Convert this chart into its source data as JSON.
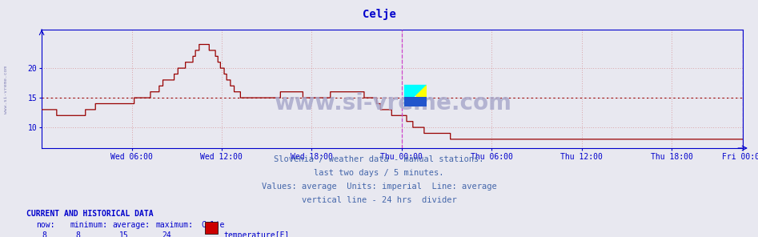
{
  "title": "Celje",
  "title_color": "#0000cc",
  "title_fontsize": 10,
  "bg_color": "#e8e8f0",
  "plot_bg_color": "#e8e8f0",
  "line_color": "#990000",
  "avg_line_color": "#990000",
  "vline_color": "#cc44cc",
  "xaxis_color": "#0000cc",
  "yaxis_color": "#0000cc",
  "grid_color": "#cc6666",
  "ylim": [
    6.5,
    26.5
  ],
  "yticks": [
    10,
    15,
    20
  ],
  "xtick_labels": [
    "Wed 06:00",
    "Wed 12:00",
    "Wed 18:00",
    "Thu 00:00",
    "Thu 06:00",
    "Thu 12:00",
    "Thu 18:00",
    "Fri 00:00"
  ],
  "avg_value": 15,
  "subtitle_lines": [
    "Slovenia / weather data - manual stations.",
    "last two days / 5 minutes.",
    "Values: average  Units: imperial  Line: average",
    "vertical line - 24 hrs  divider"
  ],
  "subtitle_color": "#4466aa",
  "subtitle_fontsize": 7.5,
  "footer_title": "CURRENT AND HISTORICAL DATA",
  "footer_color": "#0000cc",
  "footer_labels": [
    "now:",
    "minimum:",
    "average:",
    "maximum:",
    "Celje"
  ],
  "footer_values": [
    "8",
    "8",
    "15",
    "24"
  ],
  "legend_label": "temperature[F]",
  "legend_color": "#cc0000",
  "watermark": "www.si-vreme.com",
  "watermark_color": "#aaaacc",
  "watermark_fontsize": 20,
  "left_watermark": "www.si-vreme.com",
  "temp_data": [
    13,
    13,
    13,
    13,
    13,
    13,
    13,
    13,
    13,
    13,
    13,
    13,
    12,
    12,
    12,
    12,
    12,
    12,
    12,
    12,
    12,
    12,
    12,
    12,
    12,
    12,
    12,
    12,
    12,
    12,
    12,
    12,
    12,
    12,
    12,
    13,
    13,
    13,
    13,
    13,
    13,
    13,
    13,
    14,
    14,
    14,
    14,
    14,
    14,
    14,
    14,
    14,
    14,
    14,
    14,
    14,
    14,
    14,
    14,
    14,
    14,
    14,
    14,
    14,
    14,
    14,
    14,
    14,
    14,
    14,
    14,
    14,
    14,
    14,
    15,
    15,
    15,
    15,
    15,
    15,
    15,
    15,
    15,
    15,
    15,
    15,
    15,
    16,
    16,
    16,
    16,
    16,
    16,
    16,
    17,
    17,
    17,
    18,
    18,
    18,
    18,
    18,
    18,
    18,
    18,
    18,
    19,
    19,
    19,
    20,
    20,
    20,
    20,
    20,
    20,
    21,
    21,
    21,
    21,
    21,
    21,
    22,
    22,
    23,
    23,
    23,
    24,
    24,
    24,
    24,
    24,
    24,
    24,
    24,
    23,
    23,
    23,
    23,
    23,
    22,
    22,
    21,
    21,
    20,
    20,
    20,
    19,
    19,
    18,
    18,
    18,
    17,
    17,
    17,
    16,
    16,
    16,
    16,
    16,
    15,
    15,
    15,
    15,
    15,
    15,
    15,
    15,
    15,
    15,
    15,
    15,
    15,
    15,
    15,
    15,
    15,
    15,
    15,
    15,
    15,
    15,
    15,
    15,
    15,
    15,
    15,
    15,
    15,
    15,
    15,
    15,
    16,
    16,
    16,
    16,
    16,
    16,
    16,
    16,
    16,
    16,
    16,
    16,
    16,
    16,
    16,
    16,
    16,
    16,
    15,
    15,
    15,
    15,
    15,
    15,
    15,
    15,
    15,
    15,
    15,
    15,
    15,
    15,
    15,
    15,
    15,
    15,
    15,
    15,
    15,
    15,
    16,
    16,
    16,
    16,
    16,
    16,
    16,
    16,
    16,
    16,
    16,
    16,
    16,
    16,
    16,
    16,
    16,
    16,
    16,
    16,
    16,
    16,
    16,
    16,
    16,
    16,
    16,
    15,
    15,
    15,
    15,
    15,
    15,
    15,
    15,
    15,
    15,
    14,
    14,
    14,
    13,
    13,
    13,
    13,
    13,
    13,
    13,
    13,
    13,
    12,
    12,
    12,
    12,
    12,
    12,
    12,
    12,
    12,
    12,
    12,
    12,
    11,
    11,
    11,
    11,
    11,
    10,
    10,
    10,
    10,
    10,
    10,
    10,
    10,
    10,
    9,
    9,
    9,
    9,
    9,
    9,
    9,
    9,
    9,
    9,
    9,
    9,
    9,
    9,
    9,
    9,
    9,
    9,
    9,
    9,
    9,
    8,
    8,
    8,
    8,
    8,
    8,
    8,
    8,
    8,
    8,
    8,
    8,
    8,
    8,
    8,
    8,
    8,
    8,
    8,
    8,
    8,
    8,
    8,
    8,
    8,
    8,
    8,
    8,
    8,
    8,
    8,
    8,
    8,
    8,
    8,
    8,
    8,
    8,
    8,
    8,
    8,
    8,
    8,
    8,
    8,
    8,
    8,
    8,
    8,
    8,
    8,
    8,
    8,
    8,
    8,
    8,
    8,
    8,
    8,
    8,
    8,
    8,
    8,
    8,
    8,
    8,
    8,
    8,
    8,
    8,
    8,
    8,
    8,
    8,
    8,
    8,
    8,
    8,
    8,
    8,
    8,
    8,
    8,
    8,
    8,
    8,
    8,
    8,
    8,
    8,
    8,
    8,
    8,
    8,
    8,
    8,
    8,
    8,
    8,
    8,
    8,
    8,
    8,
    8,
    8,
    8,
    8,
    8,
    8,
    8,
    8,
    8,
    8,
    8,
    8,
    8,
    8,
    8,
    8,
    8,
    8,
    8,
    8,
    8,
    8,
    8,
    8,
    8,
    8,
    8,
    8,
    8,
    8,
    8,
    8,
    8,
    8,
    8,
    8,
    8,
    8,
    8,
    8,
    8,
    8,
    8,
    8,
    8,
    8,
    8,
    8,
    8,
    8,
    8,
    8,
    8,
    8,
    8,
    8,
    8,
    8,
    8,
    8,
    8,
    8,
    8,
    8,
    8,
    8,
    8,
    8,
    8,
    8,
    8,
    8,
    8,
    8,
    8,
    8,
    8,
    8,
    8,
    8,
    8,
    8,
    8,
    8,
    8,
    8,
    8,
    8,
    8,
    8,
    8,
    8,
    8,
    8,
    8,
    8,
    8,
    8,
    8,
    8,
    8,
    8,
    8,
    8,
    8,
    8,
    8,
    8,
    8,
    8,
    8,
    8,
    8,
    8,
    8,
    8,
    8,
    8,
    8,
    8,
    8,
    8,
    8,
    8,
    8,
    8,
    8,
    8,
    8,
    8,
    8,
    8
  ]
}
